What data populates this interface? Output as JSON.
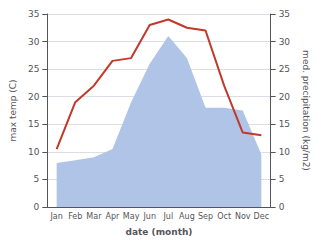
{
  "chart_data": {
    "type": "line",
    "categories": [
      "Jan",
      "Feb",
      "Mar",
      "Apr",
      "May",
      "Jun",
      "Jul",
      "Aug",
      "Sep",
      "Oct",
      "Nov",
      "Dec"
    ],
    "series": [
      {
        "type": "area",
        "axis": "y2",
        "color": "#b0c4e8",
        "values": [
          8.0,
          8.5,
          9.0,
          10.5,
          19.0,
          26.0,
          31.0,
          27.0,
          18.0,
          18.0,
          17.5,
          9.5
        ]
      },
      {
        "type": "line",
        "color": "#c0392b",
        "values": [
          10.5,
          19.0,
          22.0,
          26.5,
          27.0,
          33.0,
          34.0,
          32.5,
          32.0,
          22.0,
          13.5,
          13.0
        ]
      }
    ],
    "xlabel": "date (month)",
    "ylabel": "max temp (C)",
    "y2label": "med. precipitation (kg/m2)",
    "ylim": [
      0,
      35
    ],
    "yticks": [
      0,
      5,
      10,
      15,
      20,
      25,
      30,
      35
    ],
    "y2lim": [
      0,
      35
    ],
    "y2ticks": [
      0,
      5,
      10,
      15,
      20,
      25,
      30,
      35
    ],
    "grid": true
  }
}
